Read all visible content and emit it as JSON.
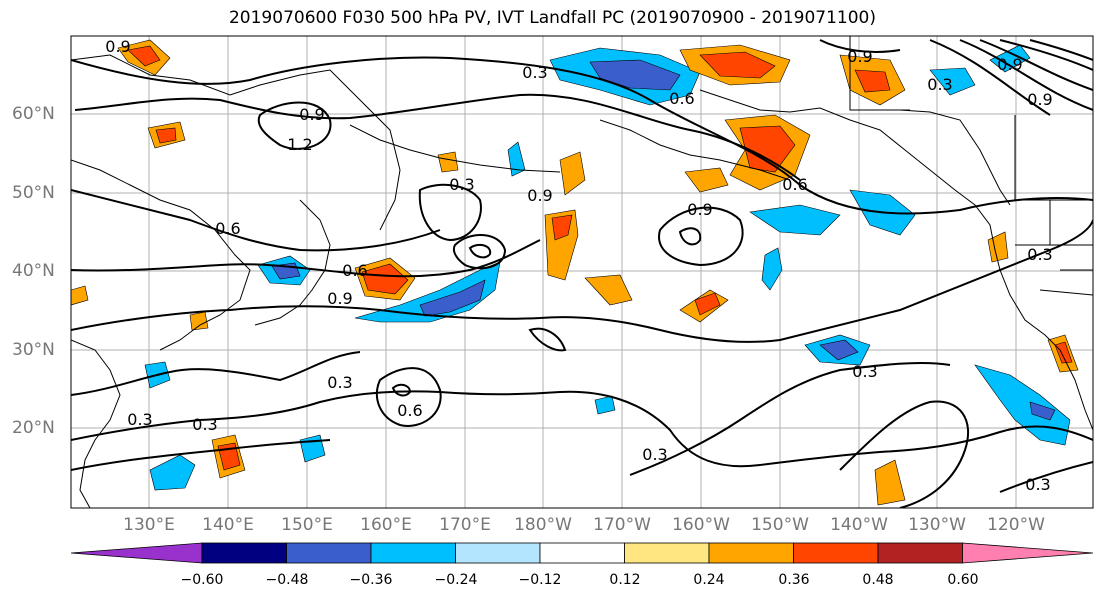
{
  "title": "2019070600 F030 500 hPa PV, IVT Landfall PC (2019070900 - 2019071100)",
  "lat_labels": [
    "60°N",
    "50°N",
    "40°N",
    "30°N",
    "20°N"
  ],
  "lon_labels": [
    "130°E",
    "140°E",
    "150°E",
    "160°E",
    "170°E",
    "180°W",
    "170°W",
    "160°W",
    "150°W",
    "140°W",
    "130°W",
    "120°W"
  ],
  "colorbar": {
    "ticks": [
      "−0.60",
      "−0.48",
      "−0.36",
      "−0.24",
      "−0.12",
      "0.12",
      "0.24",
      "0.36",
      "0.48",
      "0.60"
    ],
    "colors": [
      "#9932cc",
      "#000080",
      "#3a5fcd",
      "#00bfff",
      "#b3e5ff",
      "#ffffff",
      "#ffe680",
      "#ffa500",
      "#ff4500",
      "#b22222",
      "#ff80b0"
    ]
  },
  "contour_labels": [
    "0.9",
    "0.3",
    "0.9",
    "0.9",
    "0.6",
    "1.2",
    "0.9",
    "0.6",
    "0.9",
    "0.9",
    "0.6",
    "0.6",
    "0.9",
    "0.3",
    "0.3",
    "0.3",
    "0.3",
    "0.6",
    "0.3",
    "0.3",
    "0.3",
    "0.3",
    "0.3",
    "0.9"
  ]
}
